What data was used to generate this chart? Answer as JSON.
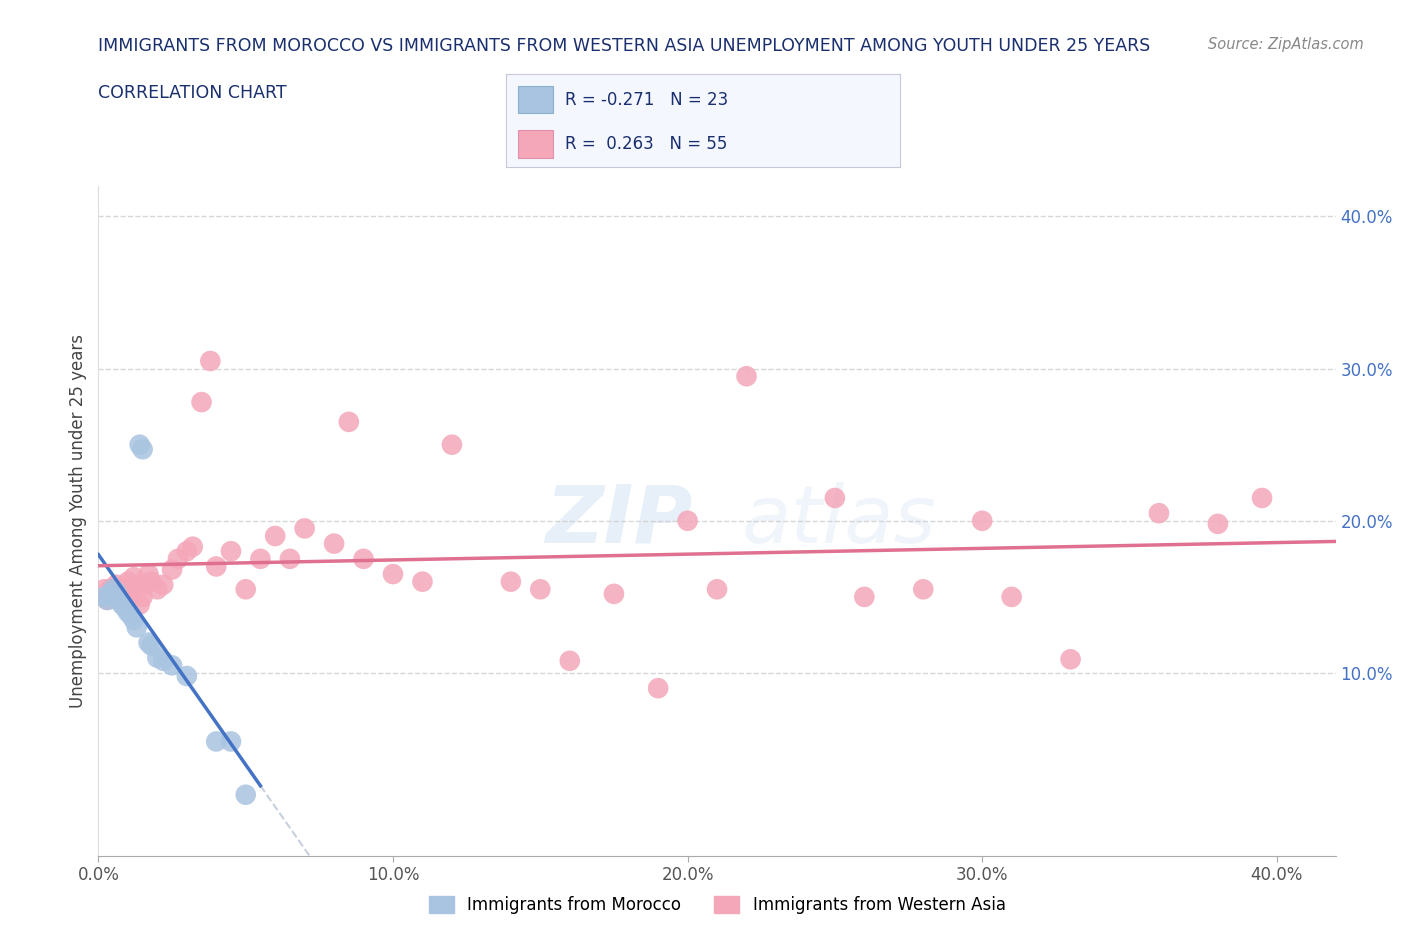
{
  "title_line1": "IMMIGRANTS FROM MOROCCO VS IMMIGRANTS FROM WESTERN ASIA UNEMPLOYMENT AMONG YOUTH UNDER 25 YEARS",
  "title_line2": "CORRELATION CHART",
  "source_text": "Source: ZipAtlas.com",
  "watermark_zip": "ZIP",
  "watermark_atlas": "atlas",
  "ylabel": "Unemployment Among Youth under 25 years",
  "xlim": [
    0.0,
    0.42
  ],
  "ylim": [
    -0.02,
    0.42
  ],
  "xtick_labels": [
    "0.0%",
    "10.0%",
    "20.0%",
    "30.0%",
    "40.0%"
  ],
  "xtick_vals": [
    0.0,
    0.1,
    0.2,
    0.3,
    0.4
  ],
  "ytick_labels": [
    "10.0%",
    "20.0%",
    "30.0%",
    "40.0%"
  ],
  "ytick_vals_right": [
    0.1,
    0.2,
    0.3,
    0.4
  ],
  "morocco_color": "#a8c4e0",
  "western_asia_color": "#f4a7b9",
  "morocco_line_color": "#4472c4",
  "western_asia_line_color": "#e07090",
  "morocco_R": -0.271,
  "morocco_N": 23,
  "western_asia_R": 0.263,
  "western_asia_N": 55,
  "legend_label_morocco": "Immigrants from Morocco",
  "legend_label_western_asia": "Immigrants from Western Asia",
  "morocco_x": [
    0.002,
    0.003,
    0.004,
    0.005,
    0.006,
    0.007,
    0.008,
    0.009,
    0.01,
    0.011,
    0.012,
    0.013,
    0.014,
    0.015,
    0.017,
    0.018,
    0.02,
    0.022,
    0.025,
    0.03,
    0.04,
    0.045,
    0.05
  ],
  "morocco_y": [
    0.15,
    0.148,
    0.152,
    0.155,
    0.153,
    0.148,
    0.145,
    0.143,
    0.14,
    0.138,
    0.135,
    0.13,
    0.25,
    0.247,
    0.12,
    0.118,
    0.11,
    0.108,
    0.105,
    0.098,
    0.055,
    0.055,
    0.02
  ],
  "western_asia_x": [
    0.002,
    0.003,
    0.004,
    0.005,
    0.006,
    0.007,
    0.008,
    0.009,
    0.01,
    0.011,
    0.012,
    0.013,
    0.014,
    0.015,
    0.016,
    0.017,
    0.018,
    0.02,
    0.022,
    0.025,
    0.027,
    0.03,
    0.032,
    0.035,
    0.038,
    0.04,
    0.045,
    0.05,
    0.055,
    0.06,
    0.065,
    0.07,
    0.08,
    0.085,
    0.09,
    0.1,
    0.11,
    0.12,
    0.14,
    0.15,
    0.16,
    0.175,
    0.19,
    0.2,
    0.21,
    0.22,
    0.25,
    0.26,
    0.28,
    0.3,
    0.31,
    0.33,
    0.36,
    0.38,
    0.395
  ],
  "western_asia_y": [
    0.155,
    0.148,
    0.155,
    0.152,
    0.158,
    0.153,
    0.148,
    0.155,
    0.16,
    0.155,
    0.163,
    0.158,
    0.145,
    0.15,
    0.158,
    0.165,
    0.16,
    0.155,
    0.158,
    0.168,
    0.175,
    0.18,
    0.183,
    0.278,
    0.305,
    0.17,
    0.18,
    0.155,
    0.175,
    0.19,
    0.175,
    0.195,
    0.185,
    0.265,
    0.175,
    0.165,
    0.16,
    0.25,
    0.16,
    0.155,
    0.108,
    0.152,
    0.09,
    0.2,
    0.155,
    0.295,
    0.215,
    0.15,
    0.155,
    0.2,
    0.15,
    0.109,
    0.205,
    0.198,
    0.215
  ],
  "background_color": "#ffffff",
  "grid_color": "#cccccc",
  "title_color": "#1a2f6e",
  "axis_label_color": "#444444",
  "tick_color_right": "#4472c4",
  "tick_color_bottom": "#555555"
}
